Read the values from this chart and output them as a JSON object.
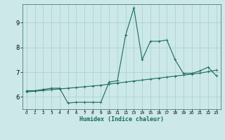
{
  "title": "",
  "xlabel": "Humidex (Indice chaleur)",
  "ylabel": "",
  "background_color": "#cce8e8",
  "grid_color": "#b0d4d4",
  "line_color": "#1a6b5a",
  "xlim": [
    -0.5,
    23.5
  ],
  "ylim": [
    5.5,
    9.75
  ],
  "yticks": [
    6,
    7,
    8,
    9
  ],
  "xtick_labels": [
    "0",
    "1",
    "2",
    "3",
    "4",
    "5",
    "6",
    "7",
    "8",
    "9",
    "10",
    "11",
    "12",
    "13",
    "14",
    "15",
    "16",
    "17",
    "18",
    "19",
    "20",
    "21",
    "22",
    "23"
  ],
  "series1_x": [
    0,
    1,
    2,
    3,
    4,
    4.5,
    5,
    6,
    7,
    8,
    9,
    10,
    11,
    12,
    13,
    14,
    15,
    16,
    17,
    18,
    19,
    20,
    21,
    22,
    23
  ],
  "series1_y": [
    6.25,
    6.25,
    6.3,
    6.35,
    6.35,
    6.25,
    5.75,
    5.78,
    5.78,
    5.78,
    5.78,
    6.6,
    6.65,
    8.5,
    9.6,
    7.5,
    8.25,
    8.25,
    8.3,
    7.5,
    6.95,
    6.95,
    7.05,
    7.2,
    6.85
  ],
  "series1_x_clean": [
    0,
    1,
    2,
    3,
    4,
    5,
    6,
    7,
    8,
    9,
    10,
    11,
    12,
    13,
    14,
    15,
    16,
    17,
    18,
    19,
    20,
    21,
    22,
    23
  ],
  "series1_y_clean": [
    6.25,
    6.25,
    6.3,
    6.35,
    6.35,
    5.75,
    5.78,
    5.78,
    5.78,
    5.78,
    6.6,
    6.65,
    8.5,
    9.6,
    7.5,
    8.25,
    8.25,
    8.3,
    7.5,
    6.95,
    6.95,
    7.05,
    7.2,
    6.85
  ],
  "series2_x": [
    0,
    1,
    2,
    3,
    4,
    5,
    6,
    7,
    8,
    9,
    10,
    11,
    12,
    13,
    14,
    15,
    16,
    17,
    18,
    19,
    20,
    21,
    22,
    23
  ],
  "series2_y": [
    6.2,
    6.23,
    6.26,
    6.29,
    6.32,
    6.35,
    6.38,
    6.41,
    6.44,
    6.47,
    6.52,
    6.56,
    6.6,
    6.64,
    6.68,
    6.72,
    6.76,
    6.8,
    6.84,
    6.88,
    6.92,
    6.96,
    7.02,
    7.08
  ]
}
